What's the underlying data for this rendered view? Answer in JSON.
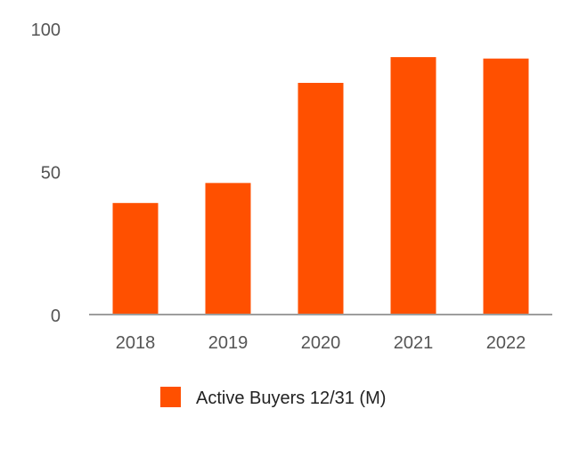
{
  "chart_data": {
    "type": "bar",
    "title": "",
    "xlabel": "",
    "ylabel": "",
    "categories": [
      "2018",
      "2019",
      "2020",
      "2021",
      "2022"
    ],
    "series": [
      {
        "name": "Active Buyers 12/31 (M)",
        "values": [
          39,
          46,
          81,
          90,
          89.5
        ],
        "color": "#FF5000"
      }
    ],
    "ylim": [
      0,
      100
    ],
    "yticks": [
      "0",
      "50",
      "100"
    ],
    "grid": false,
    "legend": {
      "position": "bottom-center"
    },
    "axis_color": "#9E9E9E"
  }
}
